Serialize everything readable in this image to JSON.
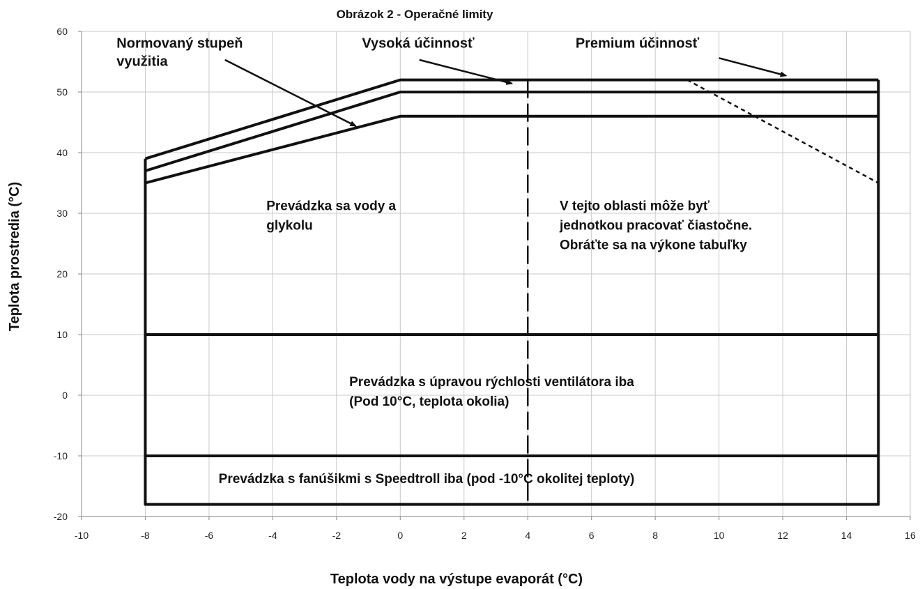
{
  "chart_data": {
    "type": "line",
    "title": "Obrázok 2 - Operačné limity",
    "xlabel": "Teplota vody na výstupe evaporát (°C)",
    "ylabel": "Teplota prostredia (°C)",
    "xlim": [
      -10,
      16
    ],
    "ylim": [
      -20,
      60
    ],
    "xticks": [
      -10,
      -8,
      -6,
      -4,
      -2,
      0,
      2,
      4,
      6,
      8,
      10,
      12,
      14,
      16
    ],
    "yticks": [
      -20,
      -10,
      0,
      10,
      20,
      30,
      40,
      50,
      60
    ],
    "grid": true,
    "legend": "none",
    "series": [
      {
        "name": "Premium účinnosť",
        "style": "solid",
        "x": [
          -8,
          0,
          15
        ],
        "y": [
          39,
          52,
          52
        ]
      },
      {
        "name": "Vysoká účinnosť",
        "style": "solid",
        "x": [
          -8,
          0,
          15
        ],
        "y": [
          37,
          50,
          50
        ]
      },
      {
        "name": "Normovaný stupeň využitia",
        "style": "solid",
        "x": [
          -8,
          0,
          15
        ],
        "y": [
          35,
          46,
          46
        ]
      },
      {
        "name": "",
        "style": "solid",
        "x": [
          -8,
          15
        ],
        "y": [
          10,
          10
        ]
      },
      {
        "name": "",
        "style": "solid",
        "x": [
          -8,
          15
        ],
        "y": [
          -10,
          -10
        ]
      },
      {
        "name": "",
        "style": "solid",
        "x": [
          -8,
          -8,
          15,
          15
        ],
        "y": [
          39,
          -18,
          -18,
          52
        ]
      },
      {
        "name": "",
        "style": "dotted",
        "x": [
          9,
          15
        ],
        "y": [
          52,
          35
        ]
      },
      {
        "name": "",
        "style": "dashed",
        "x": [
          4,
          4
        ],
        "y": [
          52,
          -18
        ]
      }
    ],
    "region_labels": [
      {
        "lines": [
          "Prevádzka sa vody a",
          "glykolu"
        ],
        "x": -4.2,
        "y": 30.5
      },
      {
        "lines": [
          "V tejto oblasti môže byť",
          "jednotkou pracovať čiastočne.",
          "Obráťte sa na výkone tabuľky"
        ],
        "x": 5.0,
        "y": 30.5
      },
      {
        "lines": [
          "Prevádzka s úpravou rýchlosti ventilátora iba",
          "(Pod 10°C, teplota okolia)"
        ],
        "x": -1.6,
        "y": 1.5
      },
      {
        "lines": [
          "Prevádzka s fanúšikmi s Speedtroll iba (pod -10°C okolitej teploty)"
        ],
        "x": -5.7,
        "y": -14.5
      }
    ],
    "annotations": [
      {
        "lines": [
          "Normovaný stupeň",
          "využitia"
        ],
        "text_x": -8.9,
        "text_y": 57.3,
        "arrow_from": [
          -5.5,
          55.3
        ],
        "arrow_to": [
          -1.4,
          44.4
        ]
      },
      {
        "lines": [
          "Vysoká účinnosť"
        ],
        "text_x": -1.2,
        "text_y": 57.3,
        "arrow_from": [
          0.6,
          55.3
        ],
        "arrow_to": [
          3.5,
          51.4
        ]
      },
      {
        "lines": [
          "Premium účinnosť"
        ],
        "text_x": 5.5,
        "text_y": 57.3,
        "arrow_from": [
          10.0,
          55.6
        ],
        "arrow_to": [
          12.1,
          52.7
        ]
      }
    ]
  }
}
